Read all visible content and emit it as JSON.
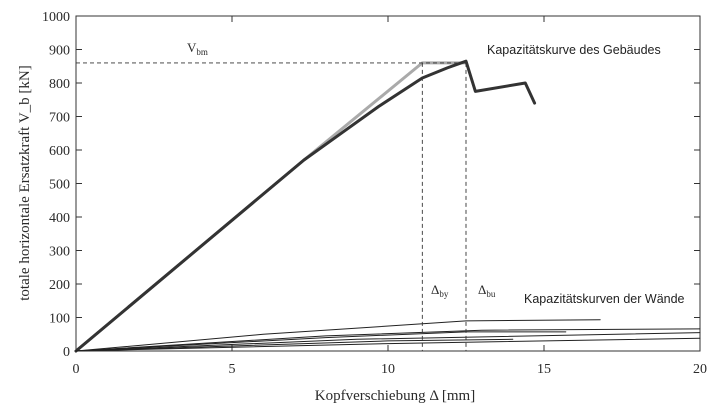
{
  "chart_data": {
    "type": "line",
    "xlabel": "Kopfverschiebung Δ [mm]",
    "ylabel": "totale horizontale Ersatzkraft V_b [kN]",
    "xlim": [
      0,
      20
    ],
    "ylim": [
      0,
      1000
    ],
    "x_ticks": [
      "0",
      "5",
      "10",
      "15",
      "20"
    ],
    "y_ticks": [
      "0",
      "100",
      "200",
      "300",
      "400",
      "500",
      "600",
      "700",
      "800",
      "900",
      "1000"
    ],
    "grid": false,
    "annotations": {
      "building_curve": "Kapazitätskurve des Gebäudes",
      "wall_curves": "Kapazitätskurven der Wände",
      "v_bm": "V",
      "v_bm_sub": "bm",
      "delta_by": "Δ",
      "delta_by_sub": "by",
      "delta_bu": "Δ",
      "delta_bu_sub": "bu"
    },
    "reference_values": {
      "V_bm": 860,
      "delta_by": 11.1,
      "delta_bu": 12.5
    },
    "series": [
      {
        "role": "bilinear-idealization",
        "color": "#aaaaaa",
        "points": [
          [
            0,
            0
          ],
          [
            7.3,
            570
          ],
          [
            11.1,
            860
          ],
          [
            12.5,
            860
          ]
        ]
      },
      {
        "role": "building-capacity",
        "color": "#333333",
        "points": [
          [
            0,
            0
          ],
          [
            7.3,
            570
          ],
          [
            8.5,
            650
          ],
          [
            9.7,
            730
          ],
          [
            11.1,
            815
          ],
          [
            11.9,
            845
          ],
          [
            12.5,
            865
          ],
          [
            12.8,
            775
          ],
          [
            14.4,
            800
          ],
          [
            14.7,
            740
          ]
        ]
      },
      {
        "role": "wall",
        "color": "#222222",
        "points": [
          [
            0,
            0
          ],
          [
            6,
            50
          ],
          [
            12.5,
            90
          ],
          [
            16.8,
            93
          ]
        ]
      },
      {
        "role": "wall",
        "color": "#222222",
        "points": [
          [
            0,
            0
          ],
          [
            8,
            45
          ],
          [
            13,
            62
          ],
          [
            20,
            66
          ]
        ]
      },
      {
        "role": "wall",
        "color": "#222222",
        "points": [
          [
            0,
            0
          ],
          [
            8,
            40
          ],
          [
            12.5,
            57
          ],
          [
            15.7,
            57
          ]
        ]
      },
      {
        "role": "wall",
        "color": "#222222",
        "points": [
          [
            0,
            0
          ],
          [
            9,
            35
          ],
          [
            20,
            55
          ]
        ]
      },
      {
        "role": "wall",
        "color": "#222222",
        "points": [
          [
            0,
            0
          ],
          [
            10,
            30
          ],
          [
            14,
            35
          ]
        ]
      },
      {
        "role": "wall",
        "color": "#222222",
        "points": [
          [
            0,
            0
          ],
          [
            10,
            22
          ],
          [
            20,
            38
          ]
        ]
      }
    ]
  }
}
